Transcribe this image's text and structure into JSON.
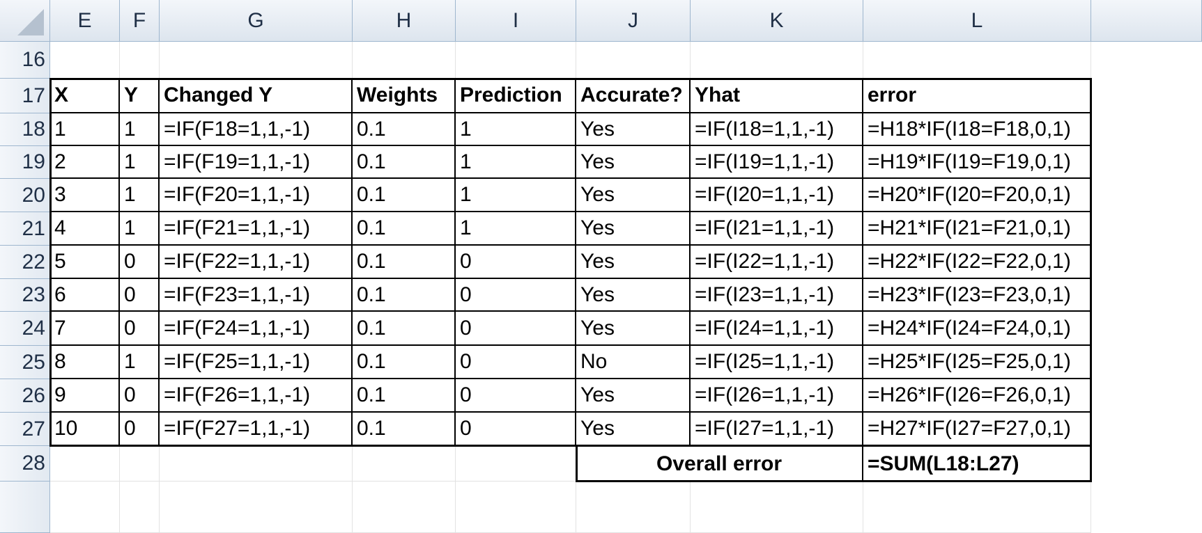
{
  "columns": [
    "E",
    "F",
    "G",
    "H",
    "I",
    "J",
    "K",
    "L"
  ],
  "rows": [
    "16",
    "17",
    "18",
    "19",
    "20",
    "21",
    "22",
    "23",
    "24",
    "25",
    "26",
    "27",
    "28"
  ],
  "headers": [
    "X",
    "Y",
    "Changed Y",
    "Weights",
    "Prediction",
    "Accurate?",
    "Yhat",
    "error"
  ],
  "data": [
    [
      "1",
      "1",
      "=IF(F18=1,1,-1)",
      "0.1",
      "1",
      "Yes",
      "=IF(I18=1,1,-1)",
      "=H18*IF(I18=F18,0,1)"
    ],
    [
      "2",
      "1",
      "=IF(F19=1,1,-1)",
      "0.1",
      "1",
      "Yes",
      "=IF(I19=1,1,-1)",
      "=H19*IF(I19=F19,0,1)"
    ],
    [
      "3",
      "1",
      "=IF(F20=1,1,-1)",
      "0.1",
      "1",
      "Yes",
      "=IF(I20=1,1,-1)",
      "=H20*IF(I20=F20,0,1)"
    ],
    [
      "4",
      "1",
      "=IF(F21=1,1,-1)",
      "0.1",
      "1",
      "Yes",
      "=IF(I21=1,1,-1)",
      "=H21*IF(I21=F21,0,1)"
    ],
    [
      "5",
      "0",
      "=IF(F22=1,1,-1)",
      "0.1",
      "0",
      "Yes",
      "=IF(I22=1,1,-1)",
      "=H22*IF(I22=F22,0,1)"
    ],
    [
      "6",
      "0",
      "=IF(F23=1,1,-1)",
      "0.1",
      "0",
      "Yes",
      "=IF(I23=1,1,-1)",
      "=H23*IF(I23=F23,0,1)"
    ],
    [
      "7",
      "0",
      "=IF(F24=1,1,-1)",
      "0.1",
      "0",
      "Yes",
      "=IF(I24=1,1,-1)",
      "=H24*IF(I24=F24,0,1)"
    ],
    [
      "8",
      "1",
      "=IF(F25=1,1,-1)",
      "0.1",
      "0",
      "No",
      "=IF(I25=1,1,-1)",
      "=H25*IF(I25=F25,0,1)"
    ],
    [
      "9",
      "0",
      "=IF(F26=1,1,-1)",
      "0.1",
      "0",
      "Yes",
      "=IF(I26=1,1,-1)",
      "=H26*IF(I26=F26,0,1)"
    ],
    [
      "10",
      "0",
      "=IF(F27=1,1,-1)",
      "0.1",
      "0",
      "Yes",
      "=IF(I27=1,1,-1)",
      "=H27*IF(I27=F27,0,1)"
    ]
  ],
  "summary": {
    "label": "Overall error",
    "formula": "=SUM(L18:L27)"
  },
  "colors": {
    "header_bg": "#dde5ee",
    "header_text": "#1f2f46",
    "grid_line": "#e2e2e2",
    "table_border": "#000000"
  }
}
